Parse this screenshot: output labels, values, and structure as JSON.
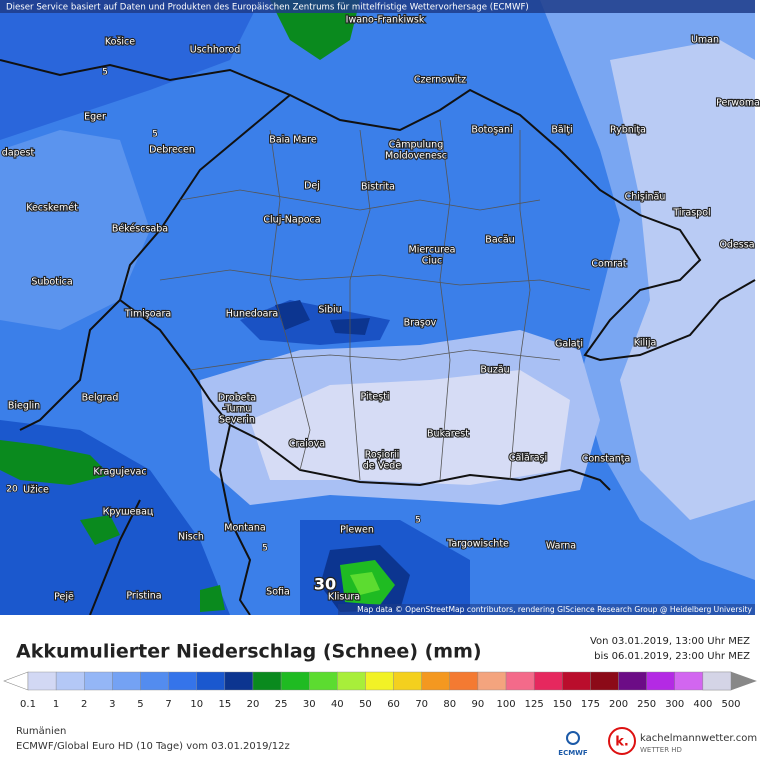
{
  "header": {
    "notice": "Dieser Service basiert auf Daten und Produkten des Europäischen Zentrums für mittelfristige Wettervorhersage (ECMWF)"
  },
  "map": {
    "cities": [
      [
        "Iwano-Frankiwsk"
      ],
      [
        "Košice"
      ],
      [
        "Uschhorod"
      ],
      [
        "Uman"
      ],
      [
        "Czernowitz"
      ],
      [
        "Eger"
      ],
      [
        "Baia Mare"
      ],
      [
        "Câmpulung",
        "Moldovenesc"
      ],
      [
        "Botoşani"
      ],
      [
        "Bălţi"
      ],
      [
        "Rybniţa"
      ],
      [
        "Perwoma"
      ],
      [
        "dapest"
      ],
      [
        "Debrecen"
      ],
      [
        "Dej"
      ],
      [
        "Bistrita"
      ],
      [
        "Chişinău"
      ],
      [
        "Tiraspol"
      ],
      [
        "Kecskemét"
      ],
      [
        "Cluj-Napoca"
      ],
      [
        "Békéscsaba"
      ],
      [
        "Odessa"
      ],
      [
        "Miercurea",
        "Ciuc"
      ],
      [
        "Bacău"
      ],
      [
        "Subotica"
      ],
      [
        "Comrat"
      ],
      [
        "Timişoara"
      ],
      [
        "Hunedoara"
      ],
      [
        "Sibiu"
      ],
      [
        "Braşov"
      ],
      [
        "Galaţi"
      ],
      [
        "Kilija"
      ],
      [
        "Buzău"
      ],
      [
        "Bieglin"
      ],
      [
        "Belgrad"
      ],
      [
        "Drobeta",
        "-Turnu",
        "Severin"
      ],
      [
        "Piteşti"
      ],
      [
        "Bukarest"
      ],
      [
        "Craiova"
      ],
      [
        "Roşiorii",
        "de Vede"
      ],
      [
        "Călăraşi"
      ],
      [
        "Constanţa"
      ],
      [
        "Kragujevac"
      ],
      [
        "Užice"
      ],
      [
        "Крушевац"
      ],
      [
        "Nisch"
      ],
      [
        "Montana"
      ],
      [
        "Plewen"
      ],
      [
        "Targowischte"
      ],
      [
        "Warna"
      ],
      [
        "Pejë"
      ],
      [
        "Pristina"
      ],
      [
        "Sofia"
      ],
      [
        "Klisura"
      ]
    ],
    "contour_labels": [
      "30",
      "20",
      "5",
      "5",
      "5",
      "5"
    ],
    "attribution": "Map data © OpenStreetMap contributors, rendering GIScience Research Group @ Heidelberg University"
  },
  "legend": {
    "title": "Akkumulierter Niederschlag (Schnee) (mm)",
    "period_from": "Von 03.01.2019, 13:00 Uhr MEZ",
    "period_to": "bis 06.01.2019, 23:00 Uhr MEZ",
    "ticks": [
      0.1,
      1,
      2,
      3,
      5,
      7,
      10,
      15,
      20,
      25,
      30,
      40,
      50,
      60,
      70,
      80,
      90,
      100,
      125,
      150,
      175,
      200,
      250,
      300,
      400,
      500
    ],
    "colors": [
      "#d2d8f4",
      "#b4c8f6",
      "#94b6f6",
      "#74a2f4",
      "#538cef",
      "#3574ea",
      "#1a58cf",
      "#0c3590",
      "#0a8a1e",
      "#1fbb22",
      "#5cdc30",
      "#a8ee3a",
      "#f2f226",
      "#f4d01e",
      "#f49820",
      "#f47a32",
      "#f4a47e",
      "#f46a8a",
      "#e6285e",
      "#ba0d2c",
      "#8c0a18",
      "#6c0c86",
      "#b42ae4",
      "#d266f0",
      "#eaaaf2",
      "#ffffff",
      "#d4d4e6"
    ]
  },
  "footer": {
    "region": "Rumänien",
    "model": "ECMWF/Global Euro HD (10 Tage) vom 03.01.2019/12z",
    "ecmwf": "ECMWF",
    "logo": "k.",
    "site": "kachelmannwetter.com",
    "tagline": "WETTER HD"
  }
}
